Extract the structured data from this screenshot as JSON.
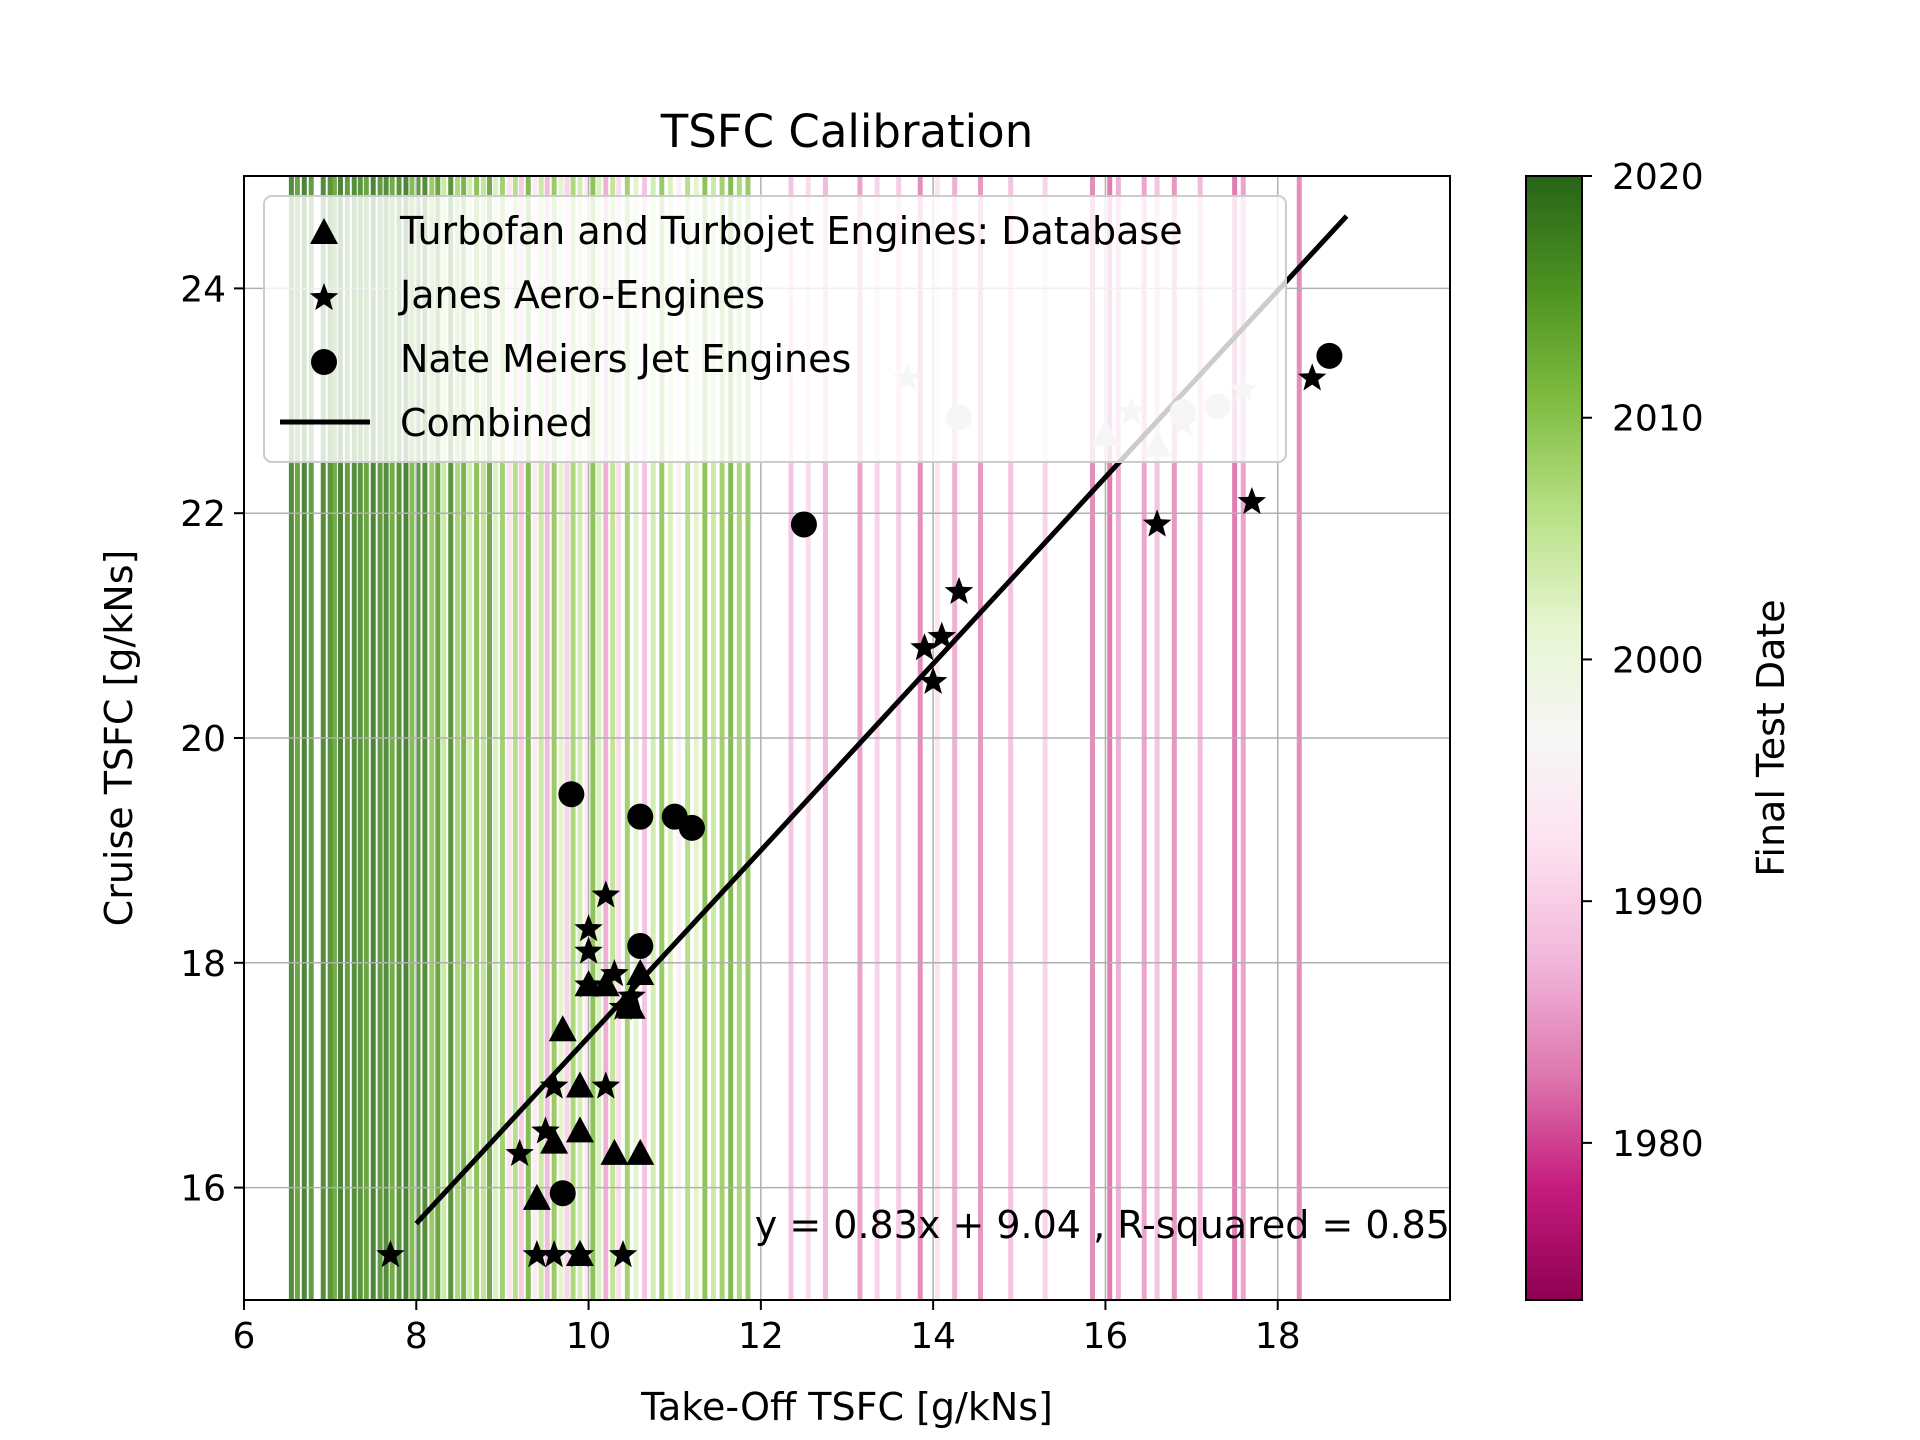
{
  "chart_data": {
    "type": "scatter",
    "title": "TSFC Calibration",
    "xlabel": "Take-Off TSFC [g/kNs]",
    "ylabel": "Cruise TSFC [g/kNs]",
    "xlim": [
      6,
      20
    ],
    "ylim": [
      15,
      25
    ],
    "xticks": [
      6,
      8,
      10,
      12,
      14,
      16,
      18
    ],
    "yticks": [
      16,
      18,
      20,
      22,
      24
    ],
    "grid": true,
    "legend_position": "upper-left",
    "colorbar": {
      "label": "Final Test Date",
      "min": 1973.5,
      "max": 2020,
      "ticks": [
        1980,
        1990,
        2000,
        2010,
        2020
      ],
      "colormap": "PiYG"
    },
    "series": [
      {
        "name": "Turbofan and Turbojet Engines: Database",
        "marker": "triangle",
        "points": [
          [
            9.4,
            15.9
          ],
          [
            9.9,
            15.4
          ],
          [
            10.3,
            16.3
          ],
          [
            10.6,
            16.3
          ],
          [
            9.9,
            16.5
          ],
          [
            9.6,
            16.4
          ],
          [
            9.9,
            16.9
          ],
          [
            9.7,
            17.4
          ],
          [
            10.5,
            17.6
          ],
          [
            10.6,
            17.9
          ],
          [
            10.2,
            17.8
          ],
          [
            10.0,
            17.8
          ],
          [
            16.6,
            22.6
          ],
          [
            16.0,
            22.7
          ]
        ]
      },
      {
        "name": "Janes Aero-Engines",
        "marker": "star",
        "points": [
          [
            7.7,
            15.4
          ],
          [
            9.4,
            15.4
          ],
          [
            9.6,
            15.4
          ],
          [
            9.9,
            15.4
          ],
          [
            10.4,
            15.4
          ],
          [
            9.2,
            16.3
          ],
          [
            9.5,
            16.5
          ],
          [
            9.6,
            16.9
          ],
          [
            10.2,
            16.9
          ],
          [
            10.0,
            17.8
          ],
          [
            10.3,
            17.9
          ],
          [
            10.4,
            17.6
          ],
          [
            10.5,
            17.7
          ],
          [
            10.0,
            18.1
          ],
          [
            10.0,
            18.3
          ],
          [
            10.2,
            18.6
          ],
          [
            13.9,
            20.8
          ],
          [
            14.1,
            20.9
          ],
          [
            14.0,
            20.5
          ],
          [
            14.3,
            21.3
          ],
          [
            16.6,
            21.9
          ],
          [
            17.7,
            22.1
          ],
          [
            18.4,
            23.2
          ],
          [
            13.7,
            23.2
          ],
          [
            16.3,
            22.9
          ],
          [
            17.6,
            23.1
          ],
          [
            16.9,
            22.8
          ]
        ]
      },
      {
        "name": "Nate Meiers Jet Engines",
        "marker": "circle",
        "points": [
          [
            9.7,
            15.95
          ],
          [
            9.8,
            19.5
          ],
          [
            10.6,
            18.15
          ],
          [
            10.6,
            19.3
          ],
          [
            11.0,
            19.3
          ],
          [
            11.2,
            19.2
          ],
          [
            12.5,
            21.9
          ],
          [
            14.3,
            22.85
          ],
          [
            16.9,
            22.9
          ],
          [
            17.3,
            22.95
          ],
          [
            18.6,
            23.4
          ]
        ]
      },
      {
        "name": "Combined",
        "type": "line",
        "slope": 0.83,
        "intercept": 9.04,
        "x_range": [
          8.0,
          18.8
        ]
      }
    ],
    "annotation": "y = 0.83x + 9.04 , R-squared = 0.85",
    "background_bands": [
      {
        "x": 6.55,
        "year": 2018
      },
      {
        "x": 6.62,
        "year": 2015
      },
      {
        "x": 6.7,
        "year": 2019
      },
      {
        "x": 6.78,
        "year": 2016
      },
      {
        "x": 6.92,
        "year": 2018
      },
      {
        "x": 7.0,
        "year": 2017
      },
      {
        "x": 7.05,
        "year": 2014
      },
      {
        "x": 7.12,
        "year": 2019
      },
      {
        "x": 7.2,
        "year": 2016
      },
      {
        "x": 7.28,
        "year": 2018
      },
      {
        "x": 7.35,
        "year": 2017
      },
      {
        "x": 7.42,
        "year": 2015
      },
      {
        "x": 7.5,
        "year": 2019
      },
      {
        "x": 7.58,
        "year": 2016
      },
      {
        "x": 7.65,
        "year": 2018
      },
      {
        "x": 7.72,
        "year": 2014
      },
      {
        "x": 7.8,
        "year": 2017
      },
      {
        "x": 7.88,
        "year": 2019
      },
      {
        "x": 7.95,
        "year": 2012
      },
      {
        "x": 8.02,
        "year": 2016
      },
      {
        "x": 8.1,
        "year": 2018
      },
      {
        "x": 8.18,
        "year": 2010
      },
      {
        "x": 8.25,
        "year": 2015
      },
      {
        "x": 8.32,
        "year": 2005
      },
      {
        "x": 8.4,
        "year": 2017
      },
      {
        "x": 8.48,
        "year": 2008
      },
      {
        "x": 8.55,
        "year": 2013
      },
      {
        "x": 8.62,
        "year": 2004
      },
      {
        "x": 8.7,
        "year": 2011
      },
      {
        "x": 8.78,
        "year": 2006
      },
      {
        "x": 8.85,
        "year": 2014
      },
      {
        "x": 8.92,
        "year": 2003
      },
      {
        "x": 9.0,
        "year": 2009
      },
      {
        "x": 9.08,
        "year": 1992
      },
      {
        "x": 9.15,
        "year": 2007
      },
      {
        "x": 9.22,
        "year": 1989
      },
      {
        "x": 9.3,
        "year": 2012
      },
      {
        "x": 9.38,
        "year": 1994
      },
      {
        "x": 9.45,
        "year": 2005
      },
      {
        "x": 9.52,
        "year": 1987
      },
      {
        "x": 9.6,
        "year": 2010
      },
      {
        "x": 9.68,
        "year": 2002
      },
      {
        "x": 9.75,
        "year": 1990
      },
      {
        "x": 9.82,
        "year": 2008
      },
      {
        "x": 9.9,
        "year": 2004
      },
      {
        "x": 9.98,
        "year": 1993
      },
      {
        "x": 10.05,
        "year": 2011
      },
      {
        "x": 10.12,
        "year": 2003
      },
      {
        "x": 10.2,
        "year": 1986
      },
      {
        "x": 10.28,
        "year": 2006
      },
      {
        "x": 10.35,
        "year": 1991
      },
      {
        "x": 10.45,
        "year": 2009
      },
      {
        "x": 10.55,
        "year": 2002
      },
      {
        "x": 10.65,
        "year": 1988
      },
      {
        "x": 10.75,
        "year": 2004
      },
      {
        "x": 10.85,
        "year": 2010
      },
      {
        "x": 10.95,
        "year": 2003
      },
      {
        "x": 11.05,
        "year": 1995
      },
      {
        "x": 11.15,
        "year": 2007
      },
      {
        "x": 11.25,
        "year": 2002
      },
      {
        "x": 11.35,
        "year": 2011
      },
      {
        "x": 11.45,
        "year": 2005
      },
      {
        "x": 11.55,
        "year": 2009
      },
      {
        "x": 11.65,
        "year": 2012
      },
      {
        "x": 11.75,
        "year": 2008
      },
      {
        "x": 11.85,
        "year": 2010
      },
      {
        "x": 12.35,
        "year": 1988
      },
      {
        "x": 12.55,
        "year": 1991
      },
      {
        "x": 12.75,
        "year": 1987
      },
      {
        "x": 13.15,
        "year": 1985
      },
      {
        "x": 13.35,
        "year": 1990
      },
      {
        "x": 13.6,
        "year": 1989
      },
      {
        "x": 13.85,
        "year": 1983
      },
      {
        "x": 14.05,
        "year": 1992
      },
      {
        "x": 14.25,
        "year": 1986
      },
      {
        "x": 14.55,
        "year": 1984
      },
      {
        "x": 14.9,
        "year": 1988
      },
      {
        "x": 15.3,
        "year": 1990
      },
      {
        "x": 15.85,
        "year": 1983
      },
      {
        "x": 16.05,
        "year": 1982
      },
      {
        "x": 16.15,
        "year": 1986
      },
      {
        "x": 16.45,
        "year": 1985
      },
      {
        "x": 16.6,
        "year": 1988
      },
      {
        "x": 16.8,
        "year": 1984
      },
      {
        "x": 17.1,
        "year": 1987
      },
      {
        "x": 17.5,
        "year": 1982
      },
      {
        "x": 17.6,
        "year": 1985
      },
      {
        "x": 18.25,
        "year": 1983
      }
    ]
  }
}
